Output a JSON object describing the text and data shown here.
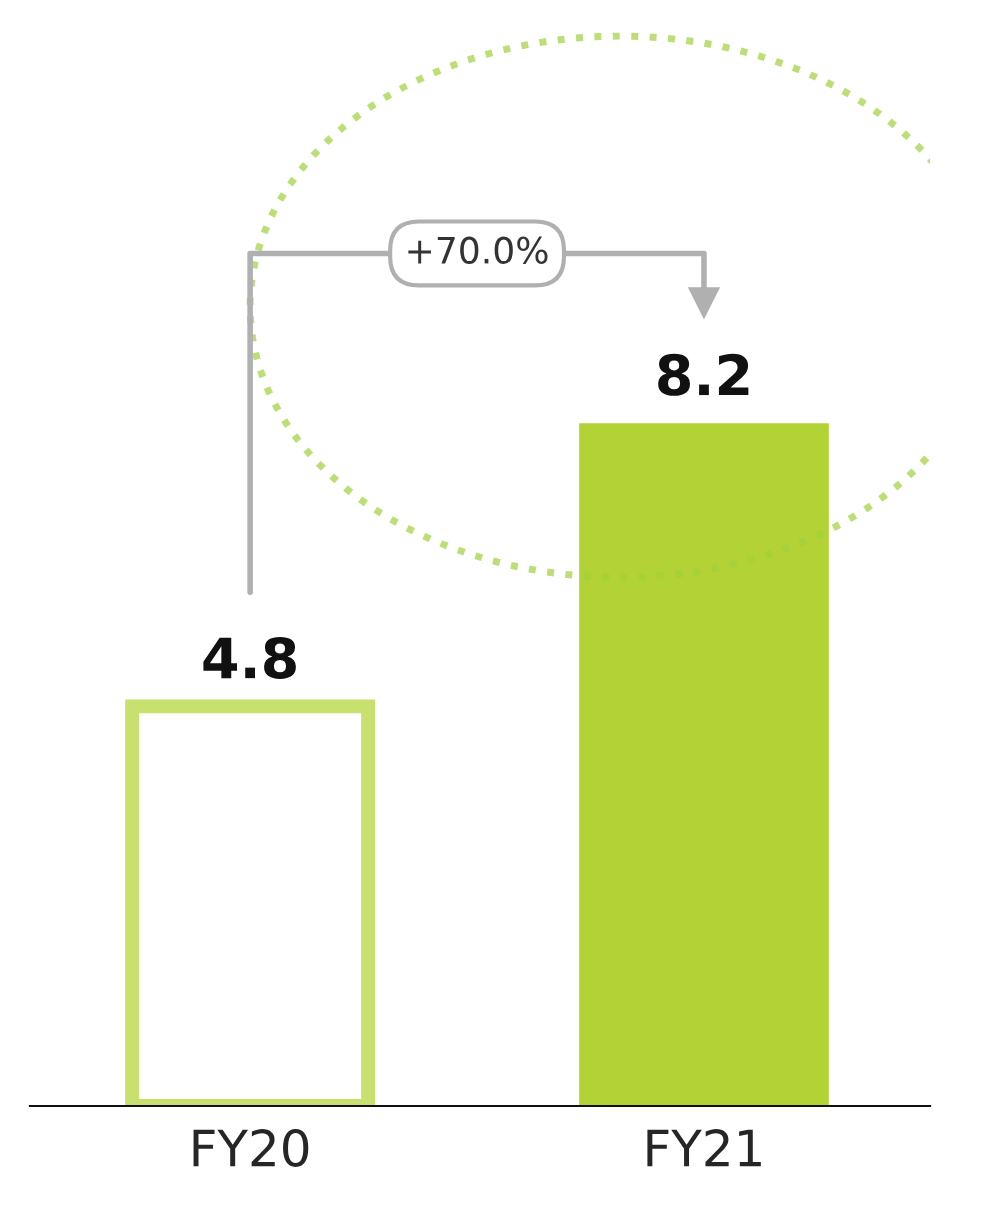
{
  "chart_data": {
    "type": "bar",
    "categories": [
      "FY20",
      "FY21"
    ],
    "values": [
      4.8,
      8.2
    ],
    "colors": [
      "#c8e06e",
      "#b2d235"
    ],
    "data_labels": true,
    "annotations": [
      "+70.0%"
    ]
  }
}
